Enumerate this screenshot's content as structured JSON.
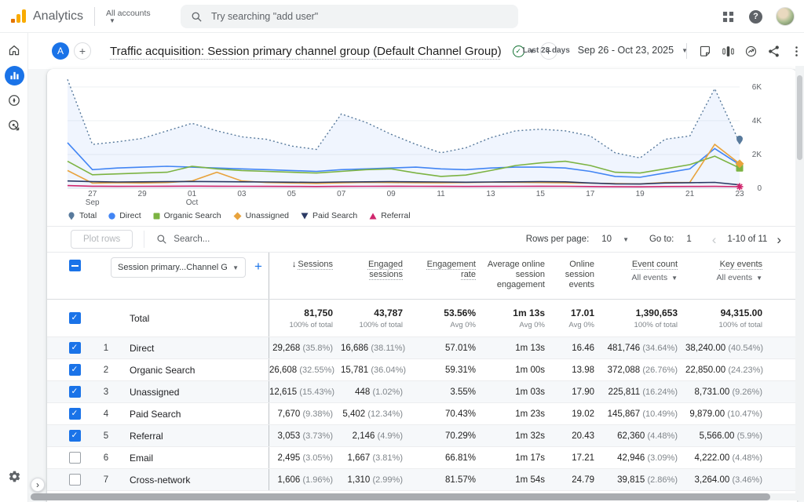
{
  "topbar": {
    "brand": "Analytics",
    "accounts_label": "All accounts",
    "search_placeholder": "Try searching \"add user\""
  },
  "report_header": {
    "workspace_initial": "A",
    "title": "Traffic acquisition: Session primary channel group (Default Channel Group)",
    "date_preset": "Last 28 days",
    "date_range": "Sep 26 - Oct 23, 2025"
  },
  "chart_data": {
    "type": "line",
    "x": [
      "Sep 26",
      "Sep 27",
      "Sep 28",
      "Sep 29",
      "Sep 30",
      "Oct 01",
      "Oct 02",
      "Oct 03",
      "Oct 04",
      "Oct 05",
      "Oct 06",
      "Oct 07",
      "Oct 08",
      "Oct 09",
      "Oct 10",
      "Oct 11",
      "Oct 12",
      "Oct 13",
      "Oct 14",
      "Oct 15",
      "Oct 16",
      "Oct 17",
      "Oct 18",
      "Oct 19",
      "Oct 20",
      "Oct 21",
      "Oct 22",
      "Oct 23"
    ],
    "x_ticks": [
      {
        "idx": 1,
        "label": "27",
        "sub": "Sep"
      },
      {
        "idx": 3,
        "label": "29"
      },
      {
        "idx": 5,
        "label": "01",
        "sub": "Oct"
      },
      {
        "idx": 7,
        "label": "03"
      },
      {
        "idx": 9,
        "label": "05"
      },
      {
        "idx": 11,
        "label": "07"
      },
      {
        "idx": 13,
        "label": "09"
      },
      {
        "idx": 15,
        "label": "11"
      },
      {
        "idx": 17,
        "label": "13"
      },
      {
        "idx": 19,
        "label": "15"
      },
      {
        "idx": 21,
        "label": "17"
      },
      {
        "idx": 23,
        "label": "19"
      },
      {
        "idx": 25,
        "label": "21"
      },
      {
        "idx": 27,
        "label": "23"
      }
    ],
    "ylim": [
      0,
      6600
    ],
    "y_ticks": [
      {
        "label": "6K",
        "value": 6000
      },
      {
        "label": "4K",
        "value": 4000
      },
      {
        "label": "2K",
        "value": 2000
      },
      {
        "label": "0",
        "value": 0
      }
    ],
    "grid": true,
    "legend_position": "bottom",
    "series": [
      {
        "name": "Total",
        "color": "#587a9c",
        "line": "dashed",
        "fill": true,
        "marker": "pin",
        "end_marker": "pin",
        "values": [
          6450,
          2600,
          2750,
          2950,
          3400,
          3850,
          3400,
          3050,
          2900,
          2500,
          2300,
          4400,
          3900,
          3200,
          2600,
          2100,
          2400,
          3000,
          3400,
          3500,
          3400,
          3100,
          2100,
          1800,
          2900,
          3100,
          5900,
          2700
        ]
      },
      {
        "name": "Direct",
        "color": "#4285f4",
        "line": "solid",
        "marker": "circle",
        "values": [
          2700,
          1100,
          1200,
          1250,
          1300,
          1250,
          1200,
          1150,
          1100,
          1050,
          1000,
          1100,
          1150,
          1200,
          1250,
          1150,
          1100,
          1200,
          1250,
          1250,
          1200,
          1000,
          700,
          650,
          900,
          1150,
          2350,
          1400
        ]
      },
      {
        "name": "Organic Search",
        "color": "#7cb342",
        "line": "solid",
        "marker": "square",
        "end_marker": "square",
        "values": [
          1600,
          800,
          850,
          900,
          950,
          1300,
          1150,
          1050,
          1000,
          950,
          900,
          1000,
          1100,
          1150,
          900,
          700,
          780,
          1050,
          1350,
          1500,
          1600,
          1350,
          950,
          900,
          1150,
          1400,
          1900,
          1200
        ]
      },
      {
        "name": "Unassigned",
        "color": "#e8a33d",
        "line": "solid",
        "marker": "diamond",
        "end_marker": "diamond",
        "values": [
          1050,
          300,
          330,
          310,
          340,
          430,
          950,
          430,
          340,
          310,
          290,
          320,
          350,
          340,
          330,
          320,
          340,
          360,
          350,
          340,
          320,
          300,
          280,
          260,
          340,
          350,
          2600,
          1450
        ]
      },
      {
        "name": "Paid Search",
        "color": "#2b3a64",
        "line": "solid",
        "marker": "triangle-down",
        "values": [
          430,
          390,
          370,
          380,
          390,
          400,
          390,
          380,
          370,
          360,
          350,
          370,
          380,
          390,
          380,
          370,
          360,
          370,
          380,
          390,
          380,
          310,
          260,
          250,
          310,
          330,
          350,
          200
        ]
      },
      {
        "name": "Referral",
        "color": "#d0266d",
        "line": "solid",
        "marker": "triangle-up",
        "end_marker": "star",
        "values": [
          160,
          120,
          110,
          115,
          120,
          125,
          120,
          115,
          110,
          105,
          100,
          110,
          115,
          120,
          115,
          110,
          105,
          110,
          115,
          120,
          115,
          100,
          90,
          85,
          100,
          105,
          110,
          95
        ]
      }
    ]
  },
  "table_controls": {
    "plot_rows_label": "Plot rows",
    "search_placeholder": "Search...",
    "rows_per_page_label": "Rows per page:",
    "rows_per_page_value": "10",
    "goto_label": "Go to:",
    "goto_value": "1",
    "pagination": "1-10 of 11"
  },
  "table": {
    "dimension_selector": "Session primary...Channel Group)",
    "columns": [
      {
        "label": "Sessions",
        "sorted": true,
        "underlined": true
      },
      {
        "label": "Engaged sessions",
        "underlined": true
      },
      {
        "label": "Engagement rate",
        "underlined": true
      },
      {
        "label": "Average online session engagement",
        "underlined": false
      },
      {
        "label": "Online session events",
        "underlined": false
      },
      {
        "label": "Event count",
        "sub": "All events",
        "underlined": true
      },
      {
        "label": "Key events",
        "sub": "All events",
        "underlined": true
      }
    ],
    "total_row": {
      "label": "Total",
      "checked": true,
      "cells": [
        {
          "v": "81,750",
          "sub": "100% of total"
        },
        {
          "v": "43,787",
          "sub": "100% of total"
        },
        {
          "v": "53.56%",
          "sub": "Avg 0%"
        },
        {
          "v": "1m 13s",
          "sub": "Avg 0%"
        },
        {
          "v": "17.01",
          "sub": "Avg 0%"
        },
        {
          "v": "1,390,653",
          "sub": "100% of total"
        },
        {
          "v": "94,315.00",
          "sub": "100% of total"
        }
      ]
    },
    "rows": [
      {
        "index": "1",
        "channel": "Direct",
        "checked": true,
        "cells": [
          [
            "29,268",
            "(35.8%)"
          ],
          [
            "16,686",
            "(38.11%)"
          ],
          [
            "57.01%",
            ""
          ],
          [
            "1m 13s",
            ""
          ],
          [
            "16.46",
            ""
          ],
          [
            "481,746",
            "(34.64%)"
          ],
          [
            "38,240.00",
            "(40.54%)"
          ]
        ]
      },
      {
        "index": "2",
        "channel": "Organic Search",
        "checked": true,
        "cells": [
          [
            "26,608",
            "(32.55%)"
          ],
          [
            "15,781",
            "(36.04%)"
          ],
          [
            "59.31%",
            ""
          ],
          [
            "1m 00s",
            ""
          ],
          [
            "13.98",
            ""
          ],
          [
            "372,088",
            "(26.76%)"
          ],
          [
            "22,850.00",
            "(24.23%)"
          ]
        ]
      },
      {
        "index": "3",
        "channel": "Unassigned",
        "checked": true,
        "cells": [
          [
            "12,615",
            "(15.43%)"
          ],
          [
            "448",
            "(1.02%)"
          ],
          [
            "3.55%",
            ""
          ],
          [
            "1m 03s",
            ""
          ],
          [
            "17.90",
            ""
          ],
          [
            "225,811",
            "(16.24%)"
          ],
          [
            "8,731.00",
            "(9.26%)"
          ]
        ]
      },
      {
        "index": "4",
        "channel": "Paid Search",
        "checked": true,
        "cells": [
          [
            "7,670",
            "(9.38%)"
          ],
          [
            "5,402",
            "(12.34%)"
          ],
          [
            "70.43%",
            ""
          ],
          [
            "1m 23s",
            ""
          ],
          [
            "19.02",
            ""
          ],
          [
            "145,867",
            "(10.49%)"
          ],
          [
            "9,879.00",
            "(10.47%)"
          ]
        ]
      },
      {
        "index": "5",
        "channel": "Referral",
        "checked": true,
        "cells": [
          [
            "3,053",
            "(3.73%)"
          ],
          [
            "2,146",
            "(4.9%)"
          ],
          [
            "70.29%",
            ""
          ],
          [
            "1m 32s",
            ""
          ],
          [
            "20.43",
            ""
          ],
          [
            "62,360",
            "(4.48%)"
          ],
          [
            "5,566.00",
            "(5.9%)"
          ]
        ]
      },
      {
        "index": "6",
        "channel": "Email",
        "checked": false,
        "cells": [
          [
            "2,495",
            "(3.05%)"
          ],
          [
            "1,667",
            "(3.81%)"
          ],
          [
            "66.81%",
            ""
          ],
          [
            "1m 17s",
            ""
          ],
          [
            "17.21",
            ""
          ],
          [
            "42,946",
            "(3.09%)"
          ],
          [
            "4,222.00",
            "(4.48%)"
          ]
        ]
      },
      {
        "index": "7",
        "channel": "Cross-network",
        "checked": false,
        "cells": [
          [
            "1,606",
            "(1.96%)"
          ],
          [
            "1,310",
            "(2.99%)"
          ],
          [
            "81.57%",
            ""
          ],
          [
            "1m 54s",
            ""
          ],
          [
            "24.79",
            ""
          ],
          [
            "39,815",
            "(2.86%)"
          ],
          [
            "3,264.00",
            "(3.46%)"
          ]
        ]
      }
    ]
  }
}
